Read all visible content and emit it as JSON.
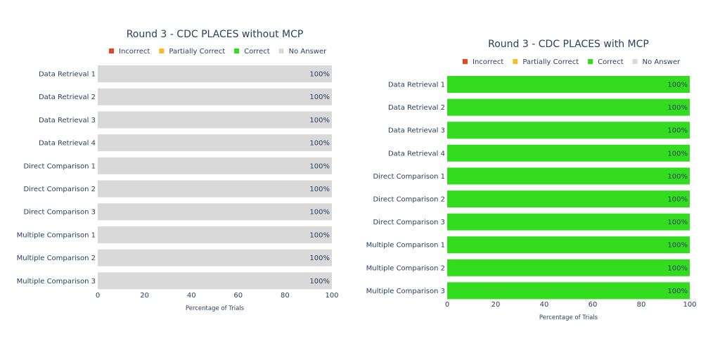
{
  "colors": {
    "incorrect": "#e8441f",
    "partially_correct": "#f5bd27",
    "correct": "#33dc1e",
    "no_answer": "#d9d9d9",
    "text": "#2a3f5f"
  },
  "chart_data": [
    {
      "type": "bar",
      "orientation": "horizontal",
      "stacked": true,
      "title": "Round 3 - CDC PLACES  without MCP",
      "xlabel": "Percentage of Trials",
      "ylabel": "",
      "xlim": [
        0,
        100
      ],
      "xticks": [
        "0",
        "20",
        "40",
        "60",
        "80",
        "100"
      ],
      "legend_position": "top",
      "legend": [
        "Incorrect",
        "Partially Correct",
        "Correct",
        "No Answer"
      ],
      "categories": [
        "Data Retrieval 1",
        "Data Retrieval 2",
        "Data Retrieval 3",
        "Data Retrieval 4",
        "Direct Comparison 1",
        "Direct Comparison 2",
        "Direct Comparison 3",
        "Multiple Comparison 1",
        "Multiple Comparison 2",
        "Multiple Comparison 3"
      ],
      "series": [
        {
          "name": "Incorrect",
          "values": [
            0,
            0,
            0,
            0,
            0,
            0,
            0,
            0,
            0,
            0
          ]
        },
        {
          "name": "Partially Correct",
          "values": [
            0,
            0,
            0,
            0,
            0,
            0,
            0,
            0,
            0,
            0
          ]
        },
        {
          "name": "Correct",
          "values": [
            0,
            0,
            0,
            0,
            0,
            0,
            0,
            0,
            0,
            0
          ]
        },
        {
          "name": "No Answer",
          "values": [
            100,
            100,
            100,
            100,
            100,
            100,
            100,
            100,
            100,
            100
          ]
        }
      ],
      "bar_labels": [
        "100%",
        "100%",
        "100%",
        "100%",
        "100%",
        "100%",
        "100%",
        "100%",
        "100%",
        "100%"
      ]
    },
    {
      "type": "bar",
      "orientation": "horizontal",
      "stacked": true,
      "title": "Round 3 - CDC PLACES with MCP",
      "xlabel": "Percentage of Trials",
      "ylabel": "",
      "xlim": [
        0,
        100
      ],
      "xticks": [
        "0",
        "20",
        "40",
        "60",
        "80",
        "100"
      ],
      "legend_position": "top",
      "legend": [
        "Incorrect",
        "Partially Correct",
        "Correct",
        "No Answer"
      ],
      "categories": [
        "Data Retrieval 1",
        "Data Retrieval 2",
        "Data Retrieval 3",
        "Data Retrieval 4",
        "Direct Comparison 1",
        "Direct Comparison 2",
        "Direct Comparison 3",
        "Multiple Comparison 1",
        "Multiple Comparison 2",
        "Multiple Comparison 3"
      ],
      "series": [
        {
          "name": "Incorrect",
          "values": [
            0,
            0,
            0,
            0,
            0,
            0,
            0,
            0,
            0,
            0
          ]
        },
        {
          "name": "Partially Correct",
          "values": [
            0,
            0,
            0,
            0,
            0,
            0,
            0,
            0,
            0,
            0
          ]
        },
        {
          "name": "Correct",
          "values": [
            100,
            100,
            100,
            100,
            100,
            100,
            100,
            100,
            100,
            100
          ]
        },
        {
          "name": "No Answer",
          "values": [
            0,
            0,
            0,
            0,
            0,
            0,
            0,
            0,
            0,
            0
          ]
        }
      ],
      "bar_labels": [
        "100%",
        "100%",
        "100%",
        "100%",
        "100%",
        "100%",
        "100%",
        "100%",
        "100%",
        "100%"
      ]
    }
  ]
}
